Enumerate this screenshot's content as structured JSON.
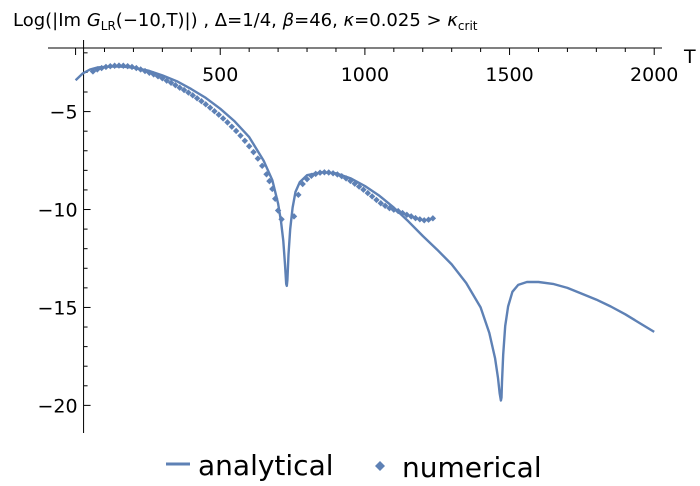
{
  "chart_data": {
    "type": "line",
    "title": "Log(|Im G_LR(−10,T)|) , Δ=1/4, β=46, κ=0.025 > κ_crit",
    "title_parts": {
      "p1": "Log(|Im ",
      "G": "G",
      "LR": "LR",
      "p2": "(−10,T)|) , Δ=1/4, ",
      "beta": "β",
      "p3": "=46, ",
      "kappa": "κ",
      "p4": "=0.025 > ",
      "kappa2": "κ",
      "crit": "crit"
    },
    "xlabel": "T",
    "ylabel": "",
    "xlim": [
      -40,
      2020
    ],
    "ylim": [
      -20.9,
      -1.6
    ],
    "x_ticks": [
      500,
      1000,
      1500,
      2000
    ],
    "x_tick_labels": [
      "500",
      "1000",
      "1500",
      "2000"
    ],
    "y_ticks": [
      -5,
      -10,
      -15,
      -20
    ],
    "y_tick_labels": [
      "−5",
      "−10",
      "−15",
      "−20"
    ],
    "grid": false,
    "legend_position": "bottom",
    "series": [
      {
        "name": "analytical",
        "kind": "line",
        "color": "#5e81b5",
        "x": [
          0,
          25,
          50,
          75,
          100,
          125,
          150,
          175,
          200,
          250,
          300,
          350,
          400,
          450,
          500,
          550,
          600,
          650,
          680,
          700,
          710,
          718,
          724,
          728,
          730,
          732,
          736,
          742,
          750,
          760,
          775,
          800,
          850,
          900,
          950,
          1000,
          1050,
          1100,
          1150,
          1200,
          1250,
          1300,
          1350,
          1400,
          1430,
          1450,
          1460,
          1466,
          1470,
          1472,
          1474,
          1478,
          1485,
          1495,
          1510,
          1530,
          1560,
          1600,
          1650,
          1700,
          1750,
          1800,
          1850,
          1900,
          1950,
          2000
        ],
        "y": [
          -3.4,
          -3.05,
          -2.85,
          -2.75,
          -2.72,
          -2.7,
          -2.7,
          -2.72,
          -2.76,
          -2.9,
          -3.15,
          -3.45,
          -3.85,
          -4.3,
          -4.85,
          -5.5,
          -6.3,
          -7.5,
          -8.5,
          -9.7,
          -10.6,
          -11.6,
          -12.8,
          -13.8,
          -13.9,
          -13.6,
          -12.3,
          -11.0,
          -9.9,
          -9.1,
          -8.6,
          -8.25,
          -8.1,
          -8.15,
          -8.4,
          -8.8,
          -9.3,
          -9.9,
          -10.6,
          -11.35,
          -12.05,
          -12.8,
          -13.75,
          -15.0,
          -16.3,
          -17.6,
          -18.6,
          -19.4,
          -19.75,
          -19.6,
          -18.8,
          -17.4,
          -15.95,
          -14.95,
          -14.2,
          -13.85,
          -13.7,
          -13.7,
          -13.8,
          -14.0,
          -14.3,
          -14.6,
          -14.95,
          -15.35,
          -15.8,
          -16.25
        ]
      },
      {
        "name": "numerical",
        "kind": "scatter",
        "color": "#5e81b5",
        "x": [
          60,
          75,
          90,
          105,
          120,
          135,
          150,
          165,
          180,
          195,
          210,
          225,
          240,
          255,
          270,
          285,
          300,
          315,
          330,
          345,
          360,
          375,
          390,
          405,
          420,
          435,
          450,
          465,
          480,
          495,
          510,
          525,
          540,
          555,
          570,
          585,
          600,
          615,
          630,
          645,
          660,
          670,
          680,
          690,
          700,
          712,
          755,
          770,
          785,
          800,
          815,
          830,
          845,
          860,
          875,
          890,
          905,
          920,
          935,
          950,
          965,
          980,
          995,
          1010,
          1025,
          1040,
          1055,
          1070,
          1085,
          1100,
          1115,
          1130,
          1145,
          1160,
          1175,
          1190,
          1205,
          1220,
          1235
        ],
        "y": [
          -2.95,
          -2.85,
          -2.78,
          -2.72,
          -2.68,
          -2.66,
          -2.65,
          -2.66,
          -2.68,
          -2.72,
          -2.78,
          -2.85,
          -2.93,
          -3.02,
          -3.1,
          -3.2,
          -3.3,
          -3.42,
          -3.53,
          -3.65,
          -3.78,
          -3.9,
          -4.03,
          -4.17,
          -4.32,
          -4.47,
          -4.63,
          -4.8,
          -4.98,
          -5.16,
          -5.35,
          -5.55,
          -5.77,
          -5.99,
          -6.23,
          -6.49,
          -6.77,
          -7.07,
          -7.4,
          -7.77,
          -8.2,
          -8.55,
          -8.95,
          -9.45,
          -10.05,
          -10.5,
          -10.35,
          -9.25,
          -8.7,
          -8.45,
          -8.28,
          -8.18,
          -8.12,
          -8.1,
          -8.11,
          -8.15,
          -8.21,
          -8.3,
          -8.41,
          -8.54,
          -8.68,
          -8.83,
          -8.99,
          -9.16,
          -9.33,
          -9.51,
          -9.68,
          -9.81,
          -9.93,
          -10.01,
          -10.08,
          -10.18,
          -10.27,
          -10.35,
          -10.44,
          -10.5,
          -10.55,
          -10.52,
          -10.45
        ]
      }
    ]
  }
}
